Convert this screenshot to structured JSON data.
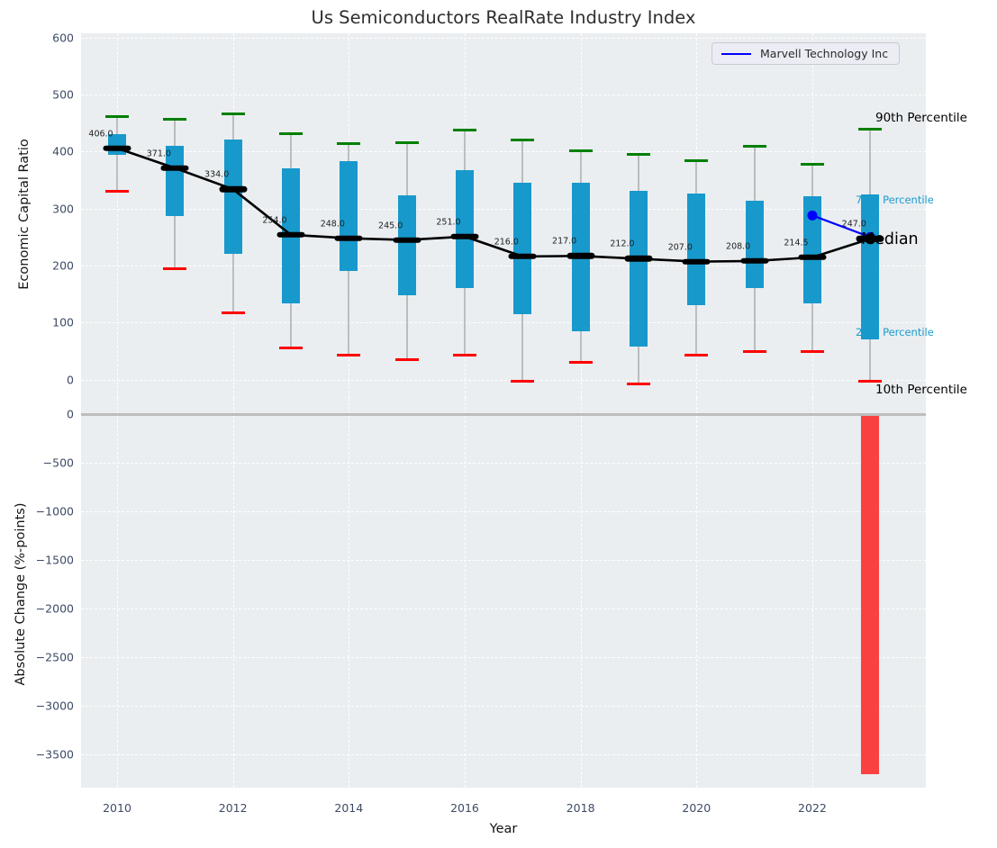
{
  "title": "Us Semiconductors RealRate Industry Index",
  "legend": {
    "label": "Marvell Technology Inc",
    "line_color": "#0000ff"
  },
  "colors": {
    "axes_background": "#eaeef1",
    "box_fill": "#1899cc",
    "p90_cap": "#008000",
    "p10_cap": "#ff0000",
    "median": "#000000",
    "marvell_line": "#0000ff",
    "neg_bar": "#f94141",
    "tick_text": "#3d4b66",
    "percentile_label_cyan": "#1a9bce"
  },
  "chart_data": [
    {
      "type": "boxplot",
      "title": "Us Semiconductors RealRate Industry Index",
      "xlabel": "Year",
      "ylabel": "Economic Capital Ratio",
      "categories": [
        2010,
        2011,
        2012,
        2013,
        2014,
        2015,
        2016,
        2017,
        2018,
        2019,
        2020,
        2021,
        2022,
        2023
      ],
      "series": [
        {
          "name": "90th Percentile",
          "values": [
            463,
            459,
            468,
            433,
            417,
            418,
            440,
            422,
            403,
            398,
            386,
            411,
            380,
            442
          ]
        },
        {
          "name": "75th Percentile",
          "values": [
            430,
            410,
            421,
            370,
            383,
            323,
            368,
            345,
            345,
            331,
            327,
            313,
            322,
            325
          ]
        },
        {
          "name": "Median",
          "values": [
            406,
            371,
            334,
            254,
            248,
            245,
            251,
            216,
            217,
            212,
            207,
            208,
            214.5,
            247
          ]
        },
        {
          "name": "25th Percentile",
          "values": [
            395,
            287,
            220,
            133,
            190,
            148,
            160,
            115,
            85,
            58,
            130,
            160,
            133,
            70
          ]
        },
        {
          "name": "10th Percentile",
          "values": [
            332,
            197,
            120,
            58,
            46,
            37,
            45,
            0,
            33,
            -6,
            45,
            52,
            52,
            0
          ]
        }
      ],
      "median_labels": [
        "406.0",
        "371.0",
        "334.0",
        "254.0",
        "248.0",
        "245.0",
        "251.0",
        "216.0",
        "217.0",
        "212.0",
        "207.0",
        "208.0",
        "214.5",
        "247.0"
      ],
      "overlay_series": {
        "name": "Marvell Technology Inc",
        "x": [
          2022,
          2023
        ],
        "y": [
          288,
          250
        ],
        "color": "#0000ff"
      },
      "right_labels": [
        {
          "text": "90th Percentile",
          "color": "#000000"
        },
        {
          "text": "75th Percentile",
          "color": "#1a9bce"
        },
        {
          "text": "Median",
          "color": "#000000"
        },
        {
          "text": "25th Percentile",
          "color": "#1a9bce"
        },
        {
          "text": "10th Percentile",
          "color": "#000000"
        }
      ],
      "ylim": [
        -32,
        608
      ],
      "yticks": [
        0,
        100,
        200,
        300,
        400,
        500,
        600
      ],
      "yticklabels": [
        "0",
        "100",
        "200",
        "300",
        "400",
        "500",
        "600"
      ],
      "xticks": [
        2010,
        2012,
        2014,
        2016,
        2018,
        2020,
        2022
      ],
      "xticklabels": [
        "2010",
        "2012",
        "2014",
        "2016",
        "2018",
        "2020",
        "2022"
      ],
      "grid": true,
      "legend_position": "upper right"
    },
    {
      "type": "bar",
      "xlabel": "Year",
      "ylabel": "Absolute Change (%-points)",
      "x": [
        2023
      ],
      "values": [
        -3700
      ],
      "ylim": [
        -3950,
        166
      ],
      "yticks": [
        0,
        -500,
        -1000,
        -1500,
        -2000,
        -2500,
        -3000,
        -3500
      ],
      "yticklabels": [
        "0",
        "−500",
        "−1000",
        "−1500",
        "−2000",
        "−2500",
        "−3000",
        "−3500"
      ],
      "grid": true
    }
  ]
}
